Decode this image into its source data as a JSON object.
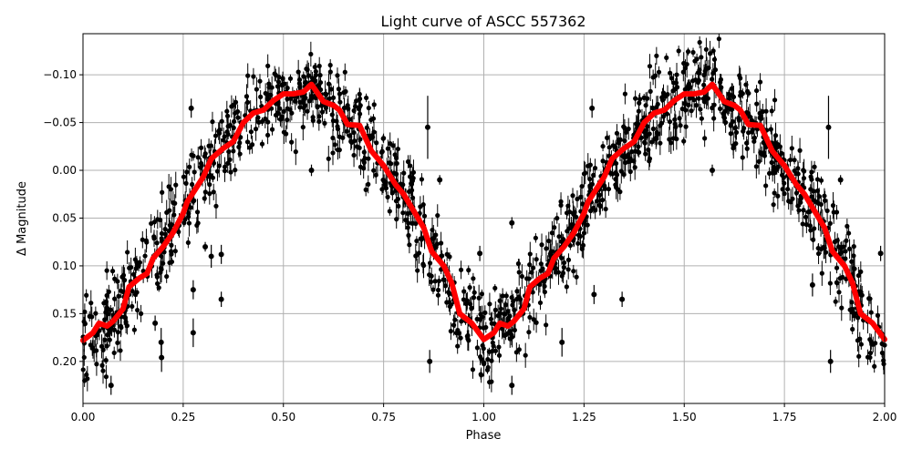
{
  "chart_data": {
    "type": "scatter",
    "title": "Light curve of ASCC 557362",
    "xlabel": "Phase",
    "ylabel": "Δ Magnitude",
    "xlim": [
      0,
      2
    ],
    "ylim": [
      -0.143,
      0.244
    ],
    "y_inverted": true,
    "grid": true,
    "x_ticks": [
      "0.00",
      "0.25",
      "0.50",
      "0.75",
      "1.00",
      "1.25",
      "1.50",
      "1.75",
      "2.00"
    ],
    "x_tick_values": [
      0,
      0.25,
      0.5,
      0.75,
      1.0,
      1.25,
      1.5,
      1.75,
      2.0
    ],
    "y_ticks": [
      "−0.10",
      "−0.05",
      "0.00",
      "0.05",
      "0.10",
      "0.15",
      "0.20"
    ],
    "y_tick_values": [
      -0.1,
      -0.05,
      0.0,
      0.05,
      0.1,
      0.15,
      0.2
    ],
    "colors": {
      "points": "#000000",
      "smoothed": "#ff0000",
      "grid": "#b0b0b0"
    },
    "smoothed_curve": {
      "phase": [
        0.0,
        0.025,
        0.04,
        0.06,
        0.075,
        0.1,
        0.115,
        0.14,
        0.16,
        0.175,
        0.2,
        0.225,
        0.25,
        0.26,
        0.28,
        0.3,
        0.32,
        0.35,
        0.375,
        0.4,
        0.425,
        0.45,
        0.475,
        0.5,
        0.525,
        0.55,
        0.57,
        0.6,
        0.625,
        0.64,
        0.66,
        0.69,
        0.72,
        0.75,
        0.78,
        0.8,
        0.85,
        0.87,
        0.9,
        0.92,
        0.94,
        0.97,
        1.0
      ],
      "magnitude": [
        0.178,
        0.17,
        0.16,
        0.163,
        0.158,
        0.145,
        0.122,
        0.113,
        0.108,
        0.092,
        0.08,
        0.065,
        0.045,
        0.033,
        0.02,
        0.007,
        -0.012,
        -0.023,
        -0.03,
        -0.05,
        -0.06,
        -0.063,
        -0.073,
        -0.08,
        -0.08,
        -0.082,
        -0.09,
        -0.072,
        -0.068,
        -0.063,
        -0.048,
        -0.047,
        -0.02,
        -0.005,
        0.015,
        0.025,
        0.06,
        0.085,
        0.1,
        0.118,
        0.15,
        0.16,
        0.177
      ],
      "repeats_every_phase": 1
    },
    "observations_sample": [
      {
        "phase": 0.27,
        "mag": -0.065,
        "err": 0.01
      },
      {
        "phase": 0.86,
        "mag": -0.045,
        "err": 0.033
      },
      {
        "phase": 0.195,
        "mag": 0.18,
        "err": 0.015
      },
      {
        "phase": 0.196,
        "mag": 0.196,
        "err": 0.015
      },
      {
        "phase": 0.275,
        "mag": 0.17,
        "err": 0.015
      },
      {
        "phase": 0.275,
        "mag": 0.125,
        "err": 0.01
      },
      {
        "phase": 0.345,
        "mag": 0.135,
        "err": 0.008
      },
      {
        "phase": 0.32,
        "mag": 0.09,
        "err": 0.012
      },
      {
        "phase": 0.345,
        "mag": 0.088,
        "err": 0.01
      },
      {
        "phase": 0.305,
        "mag": 0.08,
        "err": 0.005
      },
      {
        "phase": 0.865,
        "mag": 0.2,
        "err": 0.012
      },
      {
        "phase": 0.18,
        "mag": 0.16,
        "err": 0.008
      },
      {
        "phase": 0.57,
        "mag": 0.0,
        "err": 0.006
      },
      {
        "phase": 0.99,
        "mag": 0.087,
        "err": 0.008
      },
      {
        "phase": 1.07,
        "mag": 0.055,
        "err": 0.006
      },
      {
        "phase": 1.27,
        "mag": -0.065,
        "err": 0.01
      },
      {
        "phase": 1.86,
        "mag": -0.045,
        "err": 0.033
      },
      {
        "phase": 1.195,
        "mag": 0.18,
        "err": 0.015
      },
      {
        "phase": 1.275,
        "mag": 0.13,
        "err": 0.01
      },
      {
        "phase": 1.345,
        "mag": 0.135,
        "err": 0.008
      },
      {
        "phase": 1.865,
        "mag": 0.2,
        "err": 0.012
      },
      {
        "phase": 1.82,
        "mag": 0.12,
        "err": 0.012
      },
      {
        "phase": 1.99,
        "mag": 0.087,
        "err": 0.008
      },
      {
        "phase": 1.57,
        "mag": 0.0,
        "err": 0.006
      },
      {
        "phase": 1.89,
        "mag": 0.01,
        "err": 0.005
      },
      {
        "phase": 0.89,
        "mag": 0.01,
        "err": 0.005
      },
      {
        "phase": 0.07,
        "mag": 0.225,
        "err": 0.01
      },
      {
        "phase": 1.07,
        "mag": 0.225,
        "err": 0.01
      }
    ]
  }
}
